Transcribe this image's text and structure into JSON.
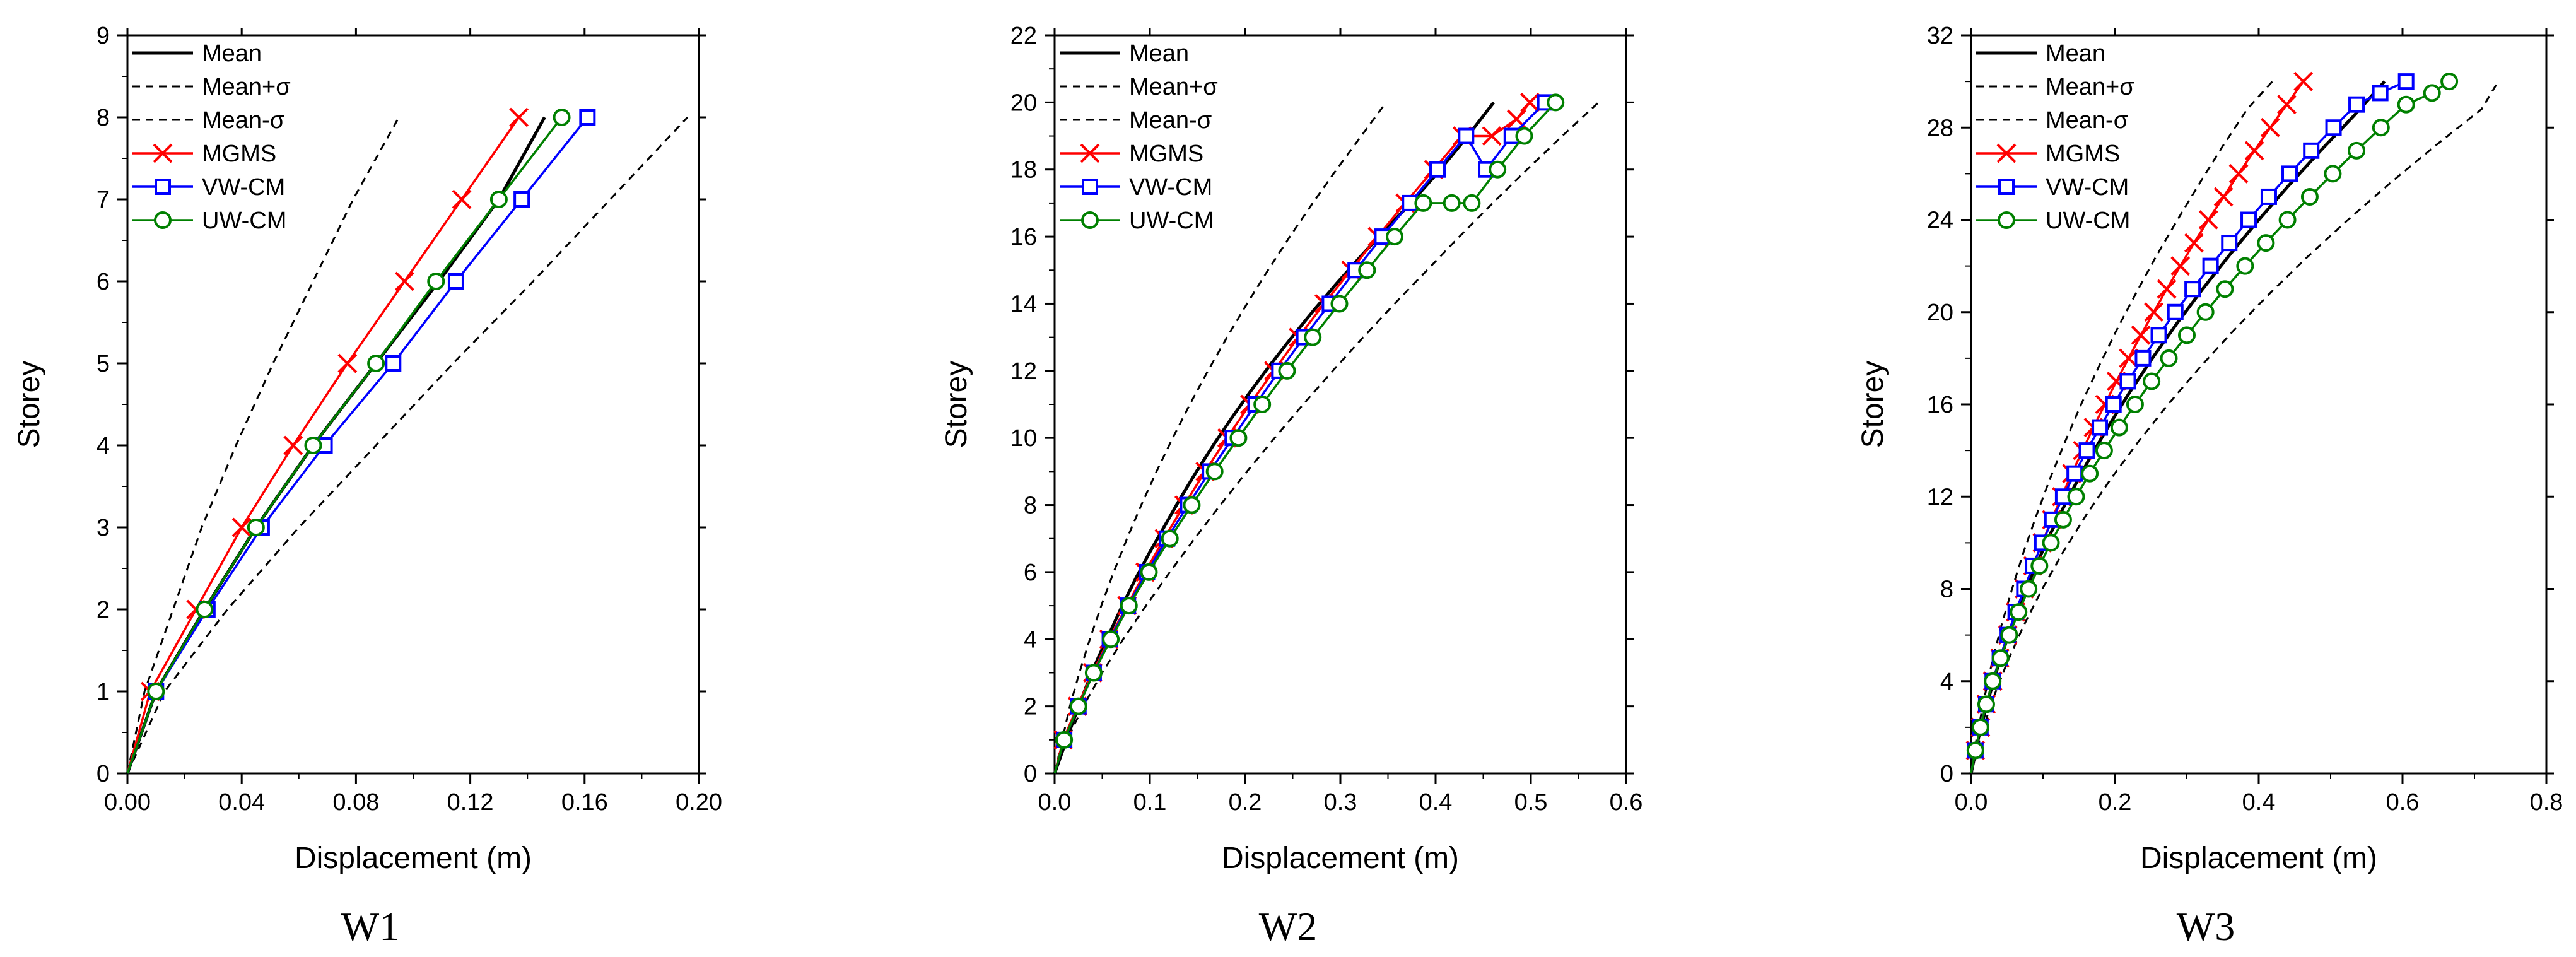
{
  "figure": {
    "series_styles": {
      "Mean": {
        "color": "#000000",
        "dash": "none",
        "marker": "none"
      },
      "Mean+σ": {
        "color": "#000000",
        "dash": "dashed",
        "marker": "none"
      },
      "Mean-σ": {
        "color": "#000000",
        "dash": "dashed",
        "marker": "none"
      },
      "MGMS": {
        "color": "#ff0000",
        "dash": "none",
        "marker": "x"
      },
      "VW-CM": {
        "color": "#0000ff",
        "dash": "none",
        "marker": "square"
      },
      "UW-CM": {
        "color": "#008000",
        "dash": "none",
        "marker": "circle"
      }
    }
  },
  "chart_data": [
    {
      "type": "line",
      "title": "W1",
      "xlabel": "Displacement (m)",
      "ylabel": "Storey",
      "xlim": [
        0,
        0.2
      ],
      "ylim": [
        0,
        9
      ],
      "xticks": [
        "0.00",
        "0.04",
        "0.08",
        "0.12",
        "0.16",
        "0.20"
      ],
      "yticks": [
        "0",
        "1",
        "2",
        "3",
        "4",
        "5",
        "6",
        "7",
        "8",
        "9"
      ],
      "legend": [
        "Mean",
        "Mean+σ",
        "Mean-σ",
        "MGMS",
        "VW-CM",
        "UW-CM"
      ],
      "series": [
        {
          "name": "Mean",
          "x": [
            0,
            0.01,
            0.027,
            0.045,
            0.065,
            0.087,
            0.109,
            0.13,
            0.146
          ],
          "y": [
            0,
            1,
            2,
            3,
            4,
            5,
            6,
            7,
            8
          ]
        },
        {
          "name": "Mean+σ",
          "x": [
            0,
            0.006,
            0.016,
            0.026,
            0.038,
            0.051,
            0.065,
            0.079,
            0.095
          ],
          "y": [
            0,
            1,
            2,
            3,
            4,
            5,
            6,
            7,
            8
          ]
        },
        {
          "name": "Mean-σ",
          "x": [
            0,
            0.013,
            0.035,
            0.06,
            0.087,
            0.114,
            0.142,
            0.169,
            0.196
          ],
          "y": [
            0,
            1,
            2,
            3,
            4,
            5,
            6,
            7,
            8
          ]
        },
        {
          "name": "MGMS",
          "x": [
            0,
            0.008,
            0.024,
            0.04,
            0.058,
            0.077,
            0.097,
            0.117,
            0.137
          ],
          "y": [
            0,
            1,
            2,
            3,
            4,
            5,
            6,
            7,
            8
          ]
        },
        {
          "name": "VW-CM",
          "x": [
            0,
            0.01,
            0.028,
            0.047,
            0.069,
            0.093,
            0.115,
            0.138,
            0.161
          ],
          "y": [
            0,
            1,
            2,
            3,
            4,
            5,
            6,
            7,
            8
          ]
        },
        {
          "name": "UW-CM",
          "x": [
            0,
            0.01,
            0.027,
            0.045,
            0.065,
            0.087,
            0.108,
            0.13,
            0.152
          ],
          "y": [
            0,
            1,
            2,
            3,
            4,
            5,
            6,
            7,
            8
          ]
        }
      ]
    },
    {
      "type": "line",
      "title": "W2",
      "xlabel": "Displacement (m)",
      "ylabel": "Storey",
      "xlim": [
        0,
        0.6
      ],
      "ylim": [
        0,
        22
      ],
      "xticks": [
        "0.0",
        "0.1",
        "0.2",
        "0.3",
        "0.4",
        "0.5",
        "0.6"
      ],
      "yticks": [
        "0",
        "2",
        "4",
        "6",
        "8",
        "10",
        "12",
        "14",
        "16",
        "18",
        "20",
        "22"
      ],
      "legend": [
        "Mean",
        "Mean+σ",
        "Mean-σ",
        "MGMS",
        "VW-CM",
        "UW-CM"
      ],
      "series": [
        {
          "name": "Mean",
          "x": [
            0,
            0.01,
            0.02,
            0.032,
            0.045,
            0.058,
            0.071,
            0.085,
            0.1,
            0.116,
            0.132,
            0.149,
            0.167,
            0.186,
            0.206,
            0.227,
            0.249,
            0.272,
            0.296,
            0.321,
            0.347,
            0.374,
            0.402,
            0.431,
            0.461
          ],
          "y": [
            0,
            0.8,
            1.6,
            2.5,
            3.4,
            4.2,
            5.0,
            5.8,
            6.6,
            7.4,
            8.2,
            9.0,
            9.8,
            10.6,
            11.4,
            12.2,
            13.0,
            13.8,
            14.6,
            15.4,
            16.2,
            17.0,
            17.9,
            18.9,
            20
          ]
        },
        {
          "name": "Mean+σ",
          "x": [
            0,
            0.008,
            0.016,
            0.026,
            0.037,
            0.049,
            0.062,
            0.076,
            0.091,
            0.107,
            0.124,
            0.142,
            0.161,
            0.181,
            0.202,
            0.224,
            0.247,
            0.271,
            0.296,
            0.322,
            0.348
          ],
          "y": [
            0,
            1,
            2,
            3,
            4,
            5,
            6,
            7,
            8,
            9,
            10,
            11,
            12,
            13,
            14,
            15,
            16,
            17,
            18,
            19,
            20
          ]
        },
        {
          "name": "Mean-σ",
          "x": [
            0,
            0.013,
            0.03,
            0.05,
            0.072,
            0.096,
            0.121,
            0.147,
            0.174,
            0.202,
            0.231,
            0.261,
            0.292,
            0.324,
            0.357,
            0.391,
            0.425,
            0.46,
            0.496,
            0.533,
            0.571
          ],
          "y": [
            0,
            1,
            2,
            3,
            4,
            5,
            6,
            7,
            8,
            9,
            10,
            11,
            12,
            13,
            14,
            15,
            16,
            17,
            18,
            19,
            20
          ]
        },
        {
          "name": "MGMS",
          "x": [
            0,
            0.009,
            0.024,
            0.04,
            0.057,
            0.076,
            0.095,
            0.115,
            0.136,
            0.158,
            0.181,
            0.205,
            0.23,
            0.256,
            0.283,
            0.311,
            0.339,
            0.368,
            0.398,
            0.428,
            0.459,
            0.485,
            0.499
          ],
          "y": [
            0,
            1,
            2,
            3,
            4,
            5,
            6,
            7,
            8,
            9,
            10,
            11,
            12,
            13,
            14,
            15,
            16,
            17,
            18,
            19,
            19,
            19.5,
            20
          ]
        },
        {
          "name": "VW-CM",
          "x": [
            0,
            0.01,
            0.025,
            0.041,
            0.058,
            0.077,
            0.097,
            0.118,
            0.14,
            0.163,
            0.187,
            0.211,
            0.236,
            0.262,
            0.289,
            0.316,
            0.344,
            0.373,
            0.402,
            0.432,
            0.453,
            0.48,
            0.515
          ],
          "y": [
            0,
            1,
            2,
            3,
            4,
            5,
            6,
            7,
            8,
            9,
            10,
            11,
            12,
            13,
            14,
            15,
            16,
            17,
            18,
            19,
            18,
            19,
            20
          ]
        },
        {
          "name": "UW-CM",
          "x": [
            0,
            0.01,
            0.025,
            0.041,
            0.059,
            0.078,
            0.099,
            0.121,
            0.144,
            0.168,
            0.193,
            0.218,
            0.244,
            0.271,
            0.299,
            0.328,
            0.357,
            0.387,
            0.417,
            0.438,
            0.465,
            0.493,
            0.526
          ],
          "y": [
            0,
            1,
            2,
            3,
            4,
            5,
            6,
            7,
            8,
            9,
            10,
            11,
            12,
            13,
            14,
            15,
            16,
            17,
            17,
            17,
            18,
            19,
            20
          ]
        }
      ]
    },
    {
      "type": "line",
      "title": "W3",
      "xlabel": "Displacement (m)",
      "ylabel": "Storey",
      "xlim": [
        0,
        0.8
      ],
      "ylim": [
        0,
        32
      ],
      "xticks": [
        "0.0",
        "0.2",
        "0.4",
        "0.6",
        "0.8"
      ],
      "yticks": [
        "0",
        "4",
        "8",
        "12",
        "16",
        "20",
        "24",
        "28",
        "32"
      ],
      "legend": [
        "Mean",
        "Mean+σ",
        "Mean-σ",
        "MGMS",
        "VW-CM",
        "UW-CM"
      ],
      "series": [
        {
          "name": "Mean",
          "x": [
            0,
            0.01,
            0.022,
            0.036,
            0.052,
            0.07,
            0.09,
            0.112,
            0.136,
            0.162,
            0.19,
            0.22,
            0.252,
            0.286,
            0.322,
            0.36,
            0.4,
            0.442,
            0.486,
            0.532,
            0.575
          ],
          "y": [
            0,
            1.5,
            3,
            4.5,
            6,
            7.5,
            9,
            10.5,
            12,
            13.5,
            15,
            16.5,
            18,
            19.5,
            21,
            22.5,
            24,
            25.5,
            27,
            28.5,
            30
          ]
        },
        {
          "name": "Mean+σ",
          "x": [
            0,
            0.008,
            0.018,
            0.029,
            0.042,
            0.057,
            0.073,
            0.091,
            0.11,
            0.131,
            0.153,
            0.177,
            0.202,
            0.229,
            0.257,
            0.287,
            0.318,
            0.35,
            0.384,
            0.419
          ],
          "y": [
            0,
            1.6,
            3.2,
            4.8,
            6.4,
            8,
            9.6,
            11.2,
            12.8,
            14.4,
            16,
            17.6,
            19.2,
            20.8,
            22.4,
            24,
            25.6,
            27.2,
            28.8,
            30
          ]
        },
        {
          "name": "Mean-σ",
          "x": [
            0,
            0.013,
            0.03,
            0.05,
            0.073,
            0.099,
            0.128,
            0.16,
            0.195,
            0.233,
            0.274,
            0.318,
            0.365,
            0.415,
            0.468,
            0.524,
            0.583,
            0.645,
            0.71,
            0.733
          ],
          "y": [
            0,
            1.6,
            3.2,
            4.8,
            6.4,
            8,
            9.6,
            11.2,
            12.8,
            14.4,
            16,
            17.6,
            19.2,
            20.8,
            22.4,
            24,
            25.6,
            27.2,
            28.8,
            30
          ]
        },
        {
          "name": "MGMS",
          "x": [
            0,
            0.006,
            0.013,
            0.021,
            0.03,
            0.04,
            0.051,
            0.062,
            0.074,
            0.086,
            0.099,
            0.112,
            0.126,
            0.14,
            0.155,
            0.17,
            0.186,
            0.202,
            0.219,
            0.236,
            0.254,
            0.272,
            0.291,
            0.31,
            0.33,
            0.351,
            0.372,
            0.394,
            0.416,
            0.439,
            0.462
          ],
          "y": [
            0,
            1,
            2,
            3,
            4,
            5,
            6,
            7,
            8,
            9,
            10,
            11,
            12,
            13,
            14,
            15,
            16,
            17,
            18,
            19,
            20,
            21,
            22,
            23,
            24,
            25,
            26,
            27,
            28,
            29,
            30
          ]
        },
        {
          "name": "VW-CM",
          "x": [
            0,
            0.006,
            0.013,
            0.021,
            0.03,
            0.04,
            0.051,
            0.062,
            0.074,
            0.086,
            0.099,
            0.113,
            0.128,
            0.144,
            0.161,
            0.179,
            0.198,
            0.218,
            0.239,
            0.261,
            0.284,
            0.308,
            0.333,
            0.359,
            0.386,
            0.414,
            0.443,
            0.473,
            0.504,
            0.536,
            0.569,
            0.605
          ],
          "y": [
            0,
            1,
            2,
            3,
            4,
            5,
            6,
            7,
            8,
            9,
            10,
            11,
            12,
            13,
            14,
            15,
            16,
            17,
            18,
            19,
            20,
            21,
            22,
            23,
            24,
            25,
            26,
            27,
            28,
            29,
            29.5,
            30
          ]
        },
        {
          "name": "UW-CM",
          "x": [
            0,
            0.006,
            0.013,
            0.021,
            0.03,
            0.041,
            0.053,
            0.066,
            0.08,
            0.095,
            0.111,
            0.128,
            0.146,
            0.165,
            0.185,
            0.206,
            0.228,
            0.251,
            0.275,
            0.3,
            0.326,
            0.353,
            0.381,
            0.41,
            0.44,
            0.471,
            0.503,
            0.536,
            0.57,
            0.605,
            0.641,
            0.665
          ],
          "y": [
            0,
            1,
            2,
            3,
            4,
            5,
            6,
            7,
            8,
            9,
            10,
            11,
            12,
            13,
            14,
            15,
            16,
            17,
            18,
            19,
            20,
            21,
            22,
            23,
            24,
            25,
            26,
            27,
            28,
            29,
            29.5,
            30
          ]
        }
      ]
    }
  ]
}
